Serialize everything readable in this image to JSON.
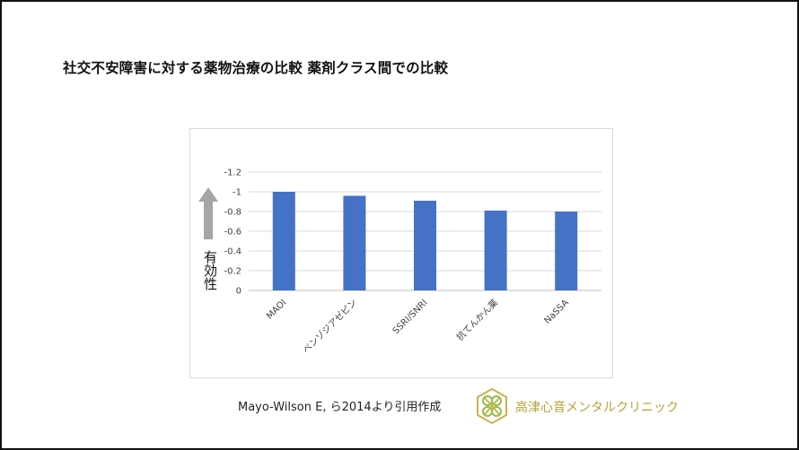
{
  "slide": {
    "title": "社交不安障害に対する薬物治療の比較 薬剤クラス間での比較",
    "efficacy_label": "有効性",
    "citation": "Mayo-Wilson E, ら2014より引用作成",
    "clinic_name": "高津心音メンタルクリニック",
    "logo_icon": "clover-hexagon-logo-icon",
    "arrow_icon": "up-arrow-icon"
  },
  "chart_data": {
    "type": "bar",
    "categories": [
      "MAOI",
      "ベンゾジアゼピン",
      "SSRI/SNRI",
      "抗てんかん薬",
      "NaSSA"
    ],
    "values": [
      -1.0,
      -0.96,
      -0.91,
      -0.81,
      -0.8
    ],
    "yticks": [
      -1.2,
      -1,
      -0.8,
      -0.6,
      -0.4,
      -0.2,
      0
    ],
    "ytick_labels": [
      "-1.2",
      "-1",
      "-0.8",
      "-0.6",
      "-0.4",
      "-0.2",
      "0"
    ],
    "ylim": [
      0,
      -1.2
    ],
    "axis_inverted": true,
    "grid": true,
    "bar_color": "#4472c4",
    "title": "",
    "xlabel": "",
    "ylabel": ""
  }
}
